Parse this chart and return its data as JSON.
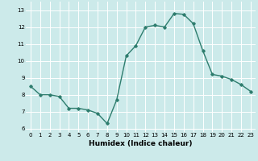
{
  "x": [
    0,
    1,
    2,
    3,
    4,
    5,
    6,
    7,
    8,
    9,
    10,
    11,
    12,
    13,
    14,
    15,
    16,
    17,
    18,
    19,
    20,
    21,
    22,
    23
  ],
  "y": [
    8.5,
    8.0,
    8.0,
    7.9,
    7.2,
    7.2,
    7.1,
    6.9,
    6.3,
    7.7,
    10.3,
    10.9,
    12.0,
    12.1,
    12.0,
    12.8,
    12.75,
    12.2,
    10.6,
    9.2,
    9.1,
    8.9,
    8.6,
    8.2
  ],
  "line_color": "#2e7d6e",
  "marker": "D",
  "marker_size": 1.8,
  "line_width": 1.0,
  "xlabel": "Humidex (Indice chaleur)",
  "xlim": [
    -0.5,
    23.5
  ],
  "ylim": [
    5.8,
    13.5
  ],
  "yticks": [
    6,
    7,
    8,
    9,
    10,
    11,
    12,
    13
  ],
  "xticks": [
    0,
    1,
    2,
    3,
    4,
    5,
    6,
    7,
    8,
    9,
    10,
    11,
    12,
    13,
    14,
    15,
    16,
    17,
    18,
    19,
    20,
    21,
    22,
    23
  ],
  "bg_color": "#cceaea",
  "grid_color": "#ffffff",
  "tick_label_fontsize": 5.0,
  "xlabel_fontsize": 6.5
}
